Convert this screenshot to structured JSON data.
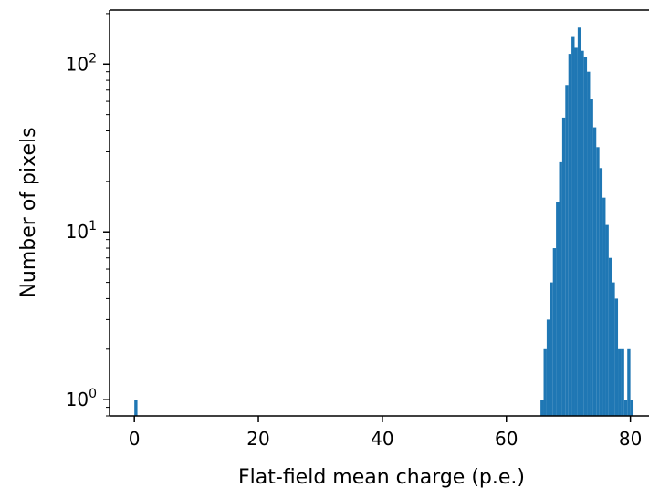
{
  "chart_data": {
    "type": "bar",
    "title": "",
    "xlabel": "Flat-field mean charge (p.e.)",
    "ylabel": "Number of pixels",
    "x_ticks": [
      0,
      20,
      40,
      60,
      80
    ],
    "y_ticks": [
      {
        "base": "10",
        "exp": "0",
        "value": 1
      },
      {
        "base": "10",
        "exp": "1",
        "value": 10
      },
      {
        "base": "10",
        "exp": "2",
        "value": 100
      }
    ],
    "xlim": [
      -4,
      83
    ],
    "ylim": [
      0.8,
      210
    ],
    "yscale": "log",
    "grid": false,
    "bar_color": "#1f77b4",
    "bin_width": 0.5,
    "bins": [
      {
        "x": 0.0,
        "count": 1
      },
      {
        "x": 65.5,
        "count": 1
      },
      {
        "x": 66.0,
        "count": 2
      },
      {
        "x": 66.5,
        "count": 3
      },
      {
        "x": 67.0,
        "count": 5
      },
      {
        "x": 67.5,
        "count": 8
      },
      {
        "x": 68.0,
        "count": 15
      },
      {
        "x": 68.5,
        "count": 26
      },
      {
        "x": 69.0,
        "count": 48
      },
      {
        "x": 69.5,
        "count": 75
      },
      {
        "x": 70.0,
        "count": 115
      },
      {
        "x": 70.5,
        "count": 145
      },
      {
        "x": 71.0,
        "count": 125
      },
      {
        "x": 71.5,
        "count": 165
      },
      {
        "x": 72.0,
        "count": 120
      },
      {
        "x": 72.5,
        "count": 110
      },
      {
        "x": 73.0,
        "count": 90
      },
      {
        "x": 73.5,
        "count": 62
      },
      {
        "x": 74.0,
        "count": 42
      },
      {
        "x": 74.5,
        "count": 32
      },
      {
        "x": 75.0,
        "count": 24
      },
      {
        "x": 75.5,
        "count": 16
      },
      {
        "x": 76.0,
        "count": 11
      },
      {
        "x": 76.5,
        "count": 7
      },
      {
        "x": 77.0,
        "count": 5
      },
      {
        "x": 77.5,
        "count": 4
      },
      {
        "x": 78.0,
        "count": 2
      },
      {
        "x": 78.5,
        "count": 2
      },
      {
        "x": 79.0,
        "count": 1
      },
      {
        "x": 79.5,
        "count": 2
      },
      {
        "x": 80.0,
        "count": 1
      }
    ]
  }
}
